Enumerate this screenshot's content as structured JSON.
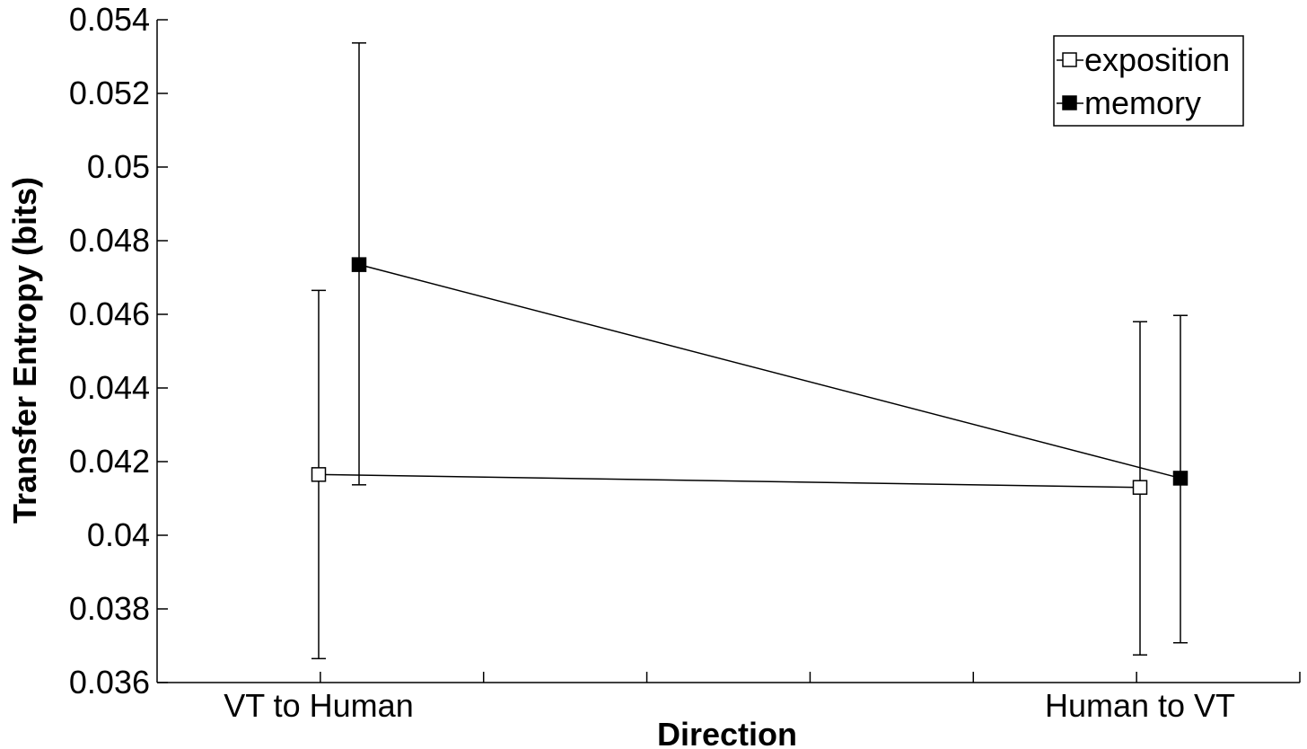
{
  "chart_data": {
    "type": "line",
    "title": "",
    "xlabel": "Direction",
    "ylabel": "Transfer Entropy (bits)",
    "categories": [
      "VT  to Human",
      "Human to VT"
    ],
    "ylim": [
      0.036,
      0.054
    ],
    "yticks": [
      "0.036",
      "0.038",
      "0.04",
      "0.042",
      "0.044",
      "0.046",
      "0.048",
      "0.05",
      "0.052",
      "0.054"
    ],
    "grid": false,
    "legend_position": "top-right",
    "series": [
      {
        "name": "exposition",
        "marker": "open-square",
        "color": "#000000",
        "values": [
          0.04165,
          0.0413
        ],
        "err_low": [
          0.03665,
          0.03675
        ],
        "err_high": [
          0.04665,
          0.0458
        ]
      },
      {
        "name": "memory",
        "marker": "filled-square",
        "color": "#000000",
        "values": [
          0.04735,
          0.04155
        ],
        "err_low": [
          0.04137,
          0.03708
        ],
        "err_high": [
          0.05337,
          0.04597
        ]
      }
    ]
  }
}
